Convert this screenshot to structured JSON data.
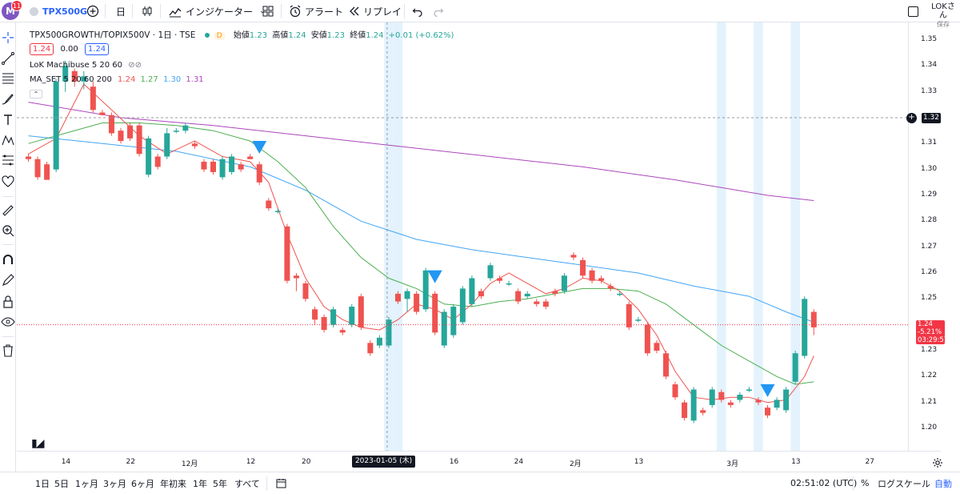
{
  "toolbar": {
    "avatar_letter": "M",
    "notifications": "11",
    "symbol": "TPX500G",
    "interval": "日",
    "indicators": "インジケーター",
    "alert": "アラート",
    "replay": "リプレイ",
    "user_name": "LOKさん",
    "save_label": "保存"
  },
  "legend": {
    "title": "TPX500GROWTH/TOPIX500V · 1日 · TSE",
    "market_status": "D",
    "ohlc": [
      {
        "label": "始値",
        "value": "1.23"
      },
      {
        "label": "高値",
        "value": "1.24"
      },
      {
        "label": "安値",
        "value": "1.23"
      },
      {
        "label": "終値",
        "value": "1.24"
      }
    ],
    "change": "+0.01 (+0.62%)",
    "sell": "1.24",
    "spread": "0.00",
    "buy": "1.24",
    "indicator1": "LoK Machibuse 5 20 60",
    "indicator2": "MA_SET 5 20 60 200",
    "ma_values": [
      "1.24",
      "1.27",
      "1.30",
      "1.31"
    ]
  },
  "price_axis": {
    "ticks": [
      "1.35",
      "1.34",
      "1.33",
      "1.32",
      "1.31",
      "1.30",
      "1.29",
      "1.28",
      "1.27",
      "1.26",
      "1.25",
      "1.24",
      "1.23",
      "1.22",
      "1.21",
      "1.20"
    ],
    "crosshair_price": "1.32",
    "last_price": "1.24",
    "last_change": "-5.21%",
    "countdown": "03:29:57"
  },
  "time_axis": {
    "labels": [
      "14",
      "22",
      "12月",
      "12",
      "20",
      "16",
      "24",
      "2月",
      "13",
      "3月",
      "13",
      "27"
    ],
    "crosshair_date": "2023-01-05 (木)"
  },
  "bottom": {
    "ranges": [
      "1日",
      "5日",
      "1ヶ月",
      "3ヶ月",
      "6ヶ月",
      "年初来",
      "1年",
      "5年",
      "すべて"
    ],
    "clock": "02:51:02 (UTC)",
    "percent": "%",
    "log": "ログスケール",
    "auto": "自動"
  },
  "colors": {
    "up": "#26a69a",
    "down": "#ef5350",
    "ma5": "#f05350",
    "ma20": "#4caf50",
    "ma60": "#42a5f5",
    "ma200": "#ab47bc",
    "signal": "#2196f3",
    "highlight": "#e3f2fd"
  },
  "chart_data": {
    "type": "candlestick",
    "candles": [
      {
        "o": 1.305,
        "h": 1.306,
        "l": 1.303,
        "c": 1.304
      },
      {
        "o": 1.304,
        "h": 1.305,
        "l": 1.296,
        "c": 1.297
      },
      {
        "o": 1.302,
        "h": 1.303,
        "l": 1.296,
        "c": 1.296
      },
      {
        "o": 1.3,
        "h": 1.335,
        "l": 1.299,
        "c": 1.334
      },
      {
        "o": 1.334,
        "h": 1.342,
        "l": 1.33,
        "c": 1.34
      },
      {
        "o": 1.338,
        "h": 1.339,
        "l": 1.332,
        "c": 1.334
      },
      {
        "o": 1.334,
        "h": 1.338,
        "l": 1.331,
        "c": 1.336
      },
      {
        "o": 1.332,
        "h": 1.334,
        "l": 1.322,
        "c": 1.323
      },
      {
        "o": 1.322,
        "h": 1.323,
        "l": 1.321,
        "c": 1.321
      },
      {
        "o": 1.321,
        "h": 1.322,
        "l": 1.313,
        "c": 1.314
      },
      {
        "o": 1.315,
        "h": 1.316,
        "l": 1.31,
        "c": 1.311
      },
      {
        "o": 1.317,
        "h": 1.318,
        "l": 1.311,
        "c": 1.312
      },
      {
        "o": 1.317,
        "h": 1.318,
        "l": 1.305,
        "c": 1.306
      },
      {
        "o": 1.298,
        "h": 1.313,
        "l": 1.297,
        "c": 1.312
      },
      {
        "o": 1.305,
        "h": 1.306,
        "l": 1.3,
        "c": 1.301
      },
      {
        "o": 1.305,
        "h": 1.316,
        "l": 1.304,
        "c": 1.314
      },
      {
        "o": 1.315,
        "h": 1.316,
        "l": 1.314,
        "c": 1.315
      },
      {
        "o": 1.315,
        "h": 1.318,
        "l": 1.314,
        "c": 1.317
      },
      {
        "o": 1.31,
        "h": 1.311,
        "l": 1.308,
        "c": 1.309
      },
      {
        "o": 1.303,
        "h": 1.304,
        "l": 1.299,
        "c": 1.3
      },
      {
        "o": 1.303,
        "h": 1.304,
        "l": 1.298,
        "c": 1.299
      },
      {
        "o": 1.297,
        "h": 1.305,
        "l": 1.296,
        "c": 1.304
      },
      {
        "o": 1.299,
        "h": 1.306,
        "l": 1.298,
        "c": 1.305
      },
      {
        "o": 1.302,
        "h": 1.303,
        "l": 1.299,
        "c": 1.3
      },
      {
        "o": 1.305,
        "h": 1.306,
        "l": 1.304,
        "c": 1.304
      },
      {
        "o": 1.302,
        "h": 1.303,
        "l": 1.294,
        "c": 1.295
      },
      {
        "o": 1.288,
        "h": 1.289,
        "l": 1.284,
        "c": 1.285
      },
      {
        "o": 1.284,
        "h": 1.285,
        "l": 1.283,
        "c": 1.284
      },
      {
        "o": 1.278,
        "h": 1.279,
        "l": 1.256,
        "c": 1.257
      },
      {
        "o": 1.259,
        "h": 1.26,
        "l": 1.253,
        "c": 1.258
      },
      {
        "o": 1.256,
        "h": 1.257,
        "l": 1.249,
        "c": 1.25
      },
      {
        "o": 1.246,
        "h": 1.247,
        "l": 1.24,
        "c": 1.242
      },
      {
        "o": 1.243,
        "h": 1.244,
        "l": 1.237,
        "c": 1.238
      },
      {
        "o": 1.24,
        "h": 1.247,
        "l": 1.239,
        "c": 1.246
      },
      {
        "o": 1.238,
        "h": 1.239,
        "l": 1.236,
        "c": 1.237
      },
      {
        "o": 1.24,
        "h": 1.248,
        "l": 1.239,
        "c": 1.247
      },
      {
        "o": 1.251,
        "h": 1.252,
        "l": 1.238,
        "c": 1.239
      },
      {
        "o": 1.233,
        "h": 1.234,
        "l": 1.228,
        "c": 1.229
      },
      {
        "o": 1.232,
        "h": 1.236,
        "l": 1.231,
        "c": 1.235
      },
      {
        "o": 1.232,
        "h": 1.243,
        "l": 1.231,
        "c": 1.242
      },
      {
        "o": 1.252,
        "h": 1.253,
        "l": 1.248,
        "c": 1.249
      },
      {
        "o": 1.25,
        "h": 1.254,
        "l": 1.245,
        "c": 1.253
      },
      {
        "o": 1.252,
        "h": 1.253,
        "l": 1.244,
        "c": 1.245
      },
      {
        "o": 1.246,
        "h": 1.262,
        "l": 1.245,
        "c": 1.261
      },
      {
        "o": 1.252,
        "h": 1.253,
        "l": 1.236,
        "c": 1.237
      },
      {
        "o": 1.232,
        "h": 1.246,
        "l": 1.231,
        "c": 1.245
      },
      {
        "o": 1.236,
        "h": 1.248,
        "l": 1.235,
        "c": 1.247
      },
      {
        "o": 1.241,
        "h": 1.255,
        "l": 1.24,
        "c": 1.254
      },
      {
        "o": 1.248,
        "h": 1.259,
        "l": 1.247,
        "c": 1.258
      },
      {
        "o": 1.253,
        "h": 1.254,
        "l": 1.25,
        "c": 1.251
      },
      {
        "o": 1.258,
        "h": 1.264,
        "l": 1.257,
        "c": 1.263
      },
      {
        "o": 1.258,
        "h": 1.259,
        "l": 1.256,
        "c": 1.257
      },
      {
        "o": 1.256,
        "h": 1.257,
        "l": 1.255,
        "c": 1.256
      },
      {
        "o": 1.253,
        "h": 1.254,
        "l": 1.248,
        "c": 1.249
      },
      {
        "o": 1.251,
        "h": 1.253,
        "l": 1.25,
        "c": 1.252
      },
      {
        "o": 1.249,
        "h": 1.25,
        "l": 1.247,
        "c": 1.248
      },
      {
        "o": 1.249,
        "h": 1.25,
        "l": 1.246,
        "c": 1.247
      },
      {
        "o": 1.253,
        "h": 1.254,
        "l": 1.251,
        "c": 1.252
      },
      {
        "o": 1.253,
        "h": 1.26,
        "l": 1.252,
        "c": 1.259
      },
      {
        "o": 1.267,
        "h": 1.268,
        "l": 1.265,
        "c": 1.266
      },
      {
        "o": 1.265,
        "h": 1.266,
        "l": 1.258,
        "c": 1.259
      },
      {
        "o": 1.261,
        "h": 1.262,
        "l": 1.256,
        "c": 1.257
      },
      {
        "o": 1.258,
        "h": 1.259,
        "l": 1.256,
        "c": 1.257
      },
      {
        "o": 1.255,
        "h": 1.256,
        "l": 1.253,
        "c": 1.254
      },
      {
        "o": 1.252,
        "h": 1.253,
        "l": 1.251,
        "c": 1.252
      },
      {
        "o": 1.248,
        "h": 1.249,
        "l": 1.238,
        "c": 1.239
      },
      {
        "o": 1.242,
        "h": 1.243,
        "l": 1.241,
        "c": 1.242
      },
      {
        "o": 1.24,
        "h": 1.241,
        "l": 1.228,
        "c": 1.229
      },
      {
        "o": 1.233,
        "h": 1.234,
        "l": 1.229,
        "c": 1.23
      },
      {
        "o": 1.229,
        "h": 1.23,
        "l": 1.219,
        "c": 1.22
      },
      {
        "o": 1.217,
        "h": 1.218,
        "l": 1.211,
        "c": 1.212
      },
      {
        "o": 1.21,
        "h": 1.211,
        "l": 1.203,
        "c": 1.204
      },
      {
        "o": 1.203,
        "h": 1.216,
        "l": 1.202,
        "c": 1.215
      },
      {
        "o": 1.207,
        "h": 1.208,
        "l": 1.205,
        "c": 1.206
      },
      {
        "o": 1.209,
        "h": 1.216,
        "l": 1.208,
        "c": 1.215
      },
      {
        "o": 1.214,
        "h": 1.215,
        "l": 1.21,
        "c": 1.211
      },
      {
        "o": 1.21,
        "h": 1.211,
        "l": 1.208,
        "c": 1.209
      },
      {
        "o": 1.211,
        "h": 1.214,
        "l": 1.21,
        "c": 1.213
      },
      {
        "o": 1.215,
        "h": 1.216,
        "l": 1.214,
        "c": 1.215
      },
      {
        "o": 1.211,
        "h": 1.212,
        "l": 1.209,
        "c": 1.21
      },
      {
        "o": 1.208,
        "h": 1.209,
        "l": 1.204,
        "c": 1.205
      },
      {
        "o": 1.208,
        "h": 1.212,
        "l": 1.207,
        "c": 1.211
      },
      {
        "o": 1.207,
        "h": 1.216,
        "l": 1.206,
        "c": 1.215
      },
      {
        "o": 1.218,
        "h": 1.23,
        "l": 1.217,
        "c": 1.229
      },
      {
        "o": 1.228,
        "h": 1.251,
        "l": 1.227,
        "c": 1.25
      },
      {
        "o": 1.245,
        "h": 1.246,
        "l": 1.236,
        "c": 1.239
      }
    ],
    "ma5": [
      [
        0,
        1.306
      ],
      [
        3,
        1.312
      ],
      [
        6,
        1.333
      ],
      [
        9,
        1.323
      ],
      [
        12,
        1.313
      ],
      [
        15,
        1.306
      ],
      [
        18,
        1.311
      ],
      [
        21,
        1.305
      ],
      [
        24,
        1.303
      ],
      [
        26,
        1.295
      ],
      [
        28,
        1.275
      ],
      [
        30,
        1.258
      ],
      [
        32,
        1.247
      ],
      [
        34,
        1.242
      ],
      [
        36,
        1.239
      ],
      [
        38,
        1.238
      ],
      [
        40,
        1.242
      ],
      [
        42,
        1.248
      ],
      [
        44,
        1.246
      ],
      [
        46,
        1.242
      ],
      [
        48,
        1.248
      ],
      [
        50,
        1.256
      ],
      [
        52,
        1.26
      ],
      [
        54,
        1.256
      ],
      [
        56,
        1.252
      ],
      [
        58,
        1.254
      ],
      [
        60,
        1.258
      ],
      [
        62,
        1.257
      ],
      [
        64,
        1.253
      ],
      [
        66,
        1.246
      ],
      [
        68,
        1.236
      ],
      [
        70,
        1.222
      ],
      [
        72,
        1.212
      ],
      [
        74,
        1.211
      ],
      [
        76,
        1.212
      ],
      [
        78,
        1.212
      ],
      [
        80,
        1.21
      ],
      [
        82,
        1.211
      ],
      [
        84,
        1.22
      ],
      [
        85,
        1.228
      ]
    ],
    "ma20": [
      [
        0,
        1.31
      ],
      [
        4,
        1.314
      ],
      [
        8,
        1.318
      ],
      [
        12,
        1.318
      ],
      [
        16,
        1.317
      ],
      [
        20,
        1.315
      ],
      [
        24,
        1.311
      ],
      [
        27,
        1.303
      ],
      [
        30,
        1.293
      ],
      [
        33,
        1.278
      ],
      [
        36,
        1.266
      ],
      [
        39,
        1.258
      ],
      [
        42,
        1.254
      ],
      [
        45,
        1.248
      ],
      [
        48,
        1.247
      ],
      [
        51,
        1.249
      ],
      [
        54,
        1.25
      ],
      [
        57,
        1.252
      ],
      [
        60,
        1.254
      ],
      [
        63,
        1.254
      ],
      [
        66,
        1.253
      ],
      [
        69,
        1.248
      ],
      [
        72,
        1.24
      ],
      [
        75,
        1.232
      ],
      [
        78,
        1.226
      ],
      [
        81,
        1.22
      ],
      [
        83,
        1.217
      ],
      [
        85,
        1.218
      ]
    ],
    "ma60": [
      [
        0,
        1.313
      ],
      [
        8,
        1.31
      ],
      [
        16,
        1.307
      ],
      [
        24,
        1.301
      ],
      [
        30,
        1.292
      ],
      [
        36,
        1.28
      ],
      [
        42,
        1.273
      ],
      [
        48,
        1.269
      ],
      [
        54,
        1.266
      ],
      [
        60,
        1.263
      ],
      [
        66,
        1.26
      ],
      [
        72,
        1.255
      ],
      [
        78,
        1.251
      ],
      [
        82,
        1.245
      ],
      [
        85,
        1.241
      ]
    ],
    "ma200": [
      [
        0,
        1.326
      ],
      [
        10,
        1.32
      ],
      [
        20,
        1.317
      ],
      [
        30,
        1.313
      ],
      [
        40,
        1.309
      ],
      [
        50,
        1.305
      ],
      [
        60,
        1.301
      ],
      [
        70,
        1.296
      ],
      [
        80,
        1.29
      ],
      [
        85,
        1.288
      ]
    ],
    "signal_arrows": [
      25,
      44,
      80
    ],
    "highlight_bars": [
      39,
      40,
      75,
      79,
      83
    ],
    "dashed_levels": [
      1.32,
      1.24
    ],
    "ylim": [
      1.195,
      1.355
    ]
  }
}
